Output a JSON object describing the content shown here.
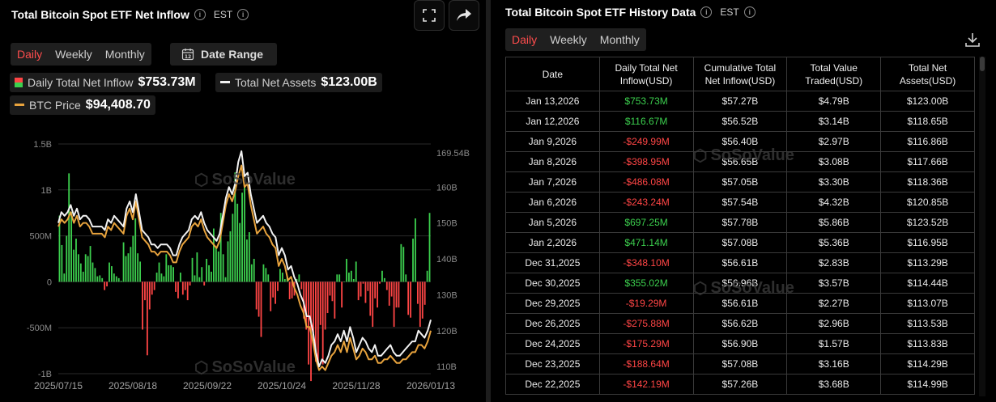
{
  "left": {
    "title": "Total Bitcoin Spot ETF Net Inflow",
    "timezone": "EST",
    "tabs": [
      "Daily",
      "Weekly",
      "Monthly"
    ],
    "active_tab": "Daily",
    "date_range_label": "Date Range",
    "legend": {
      "inflow_label": "Daily Total Net Inflow",
      "inflow_value": "$753.73M",
      "assets_label": "Total Net Assets",
      "assets_value": "$123.00B",
      "btc_label": "BTC Price",
      "btc_value": "$94,408.70"
    },
    "watermark": "SoSoValue"
  },
  "right": {
    "title": "Total Bitcoin Spot ETF History Data",
    "timezone": "EST",
    "tabs": [
      "Daily",
      "Weekly",
      "Monthly"
    ],
    "active_tab": "Daily",
    "columns": [
      "Date",
      "Daily Total Net Inflow(USD)",
      "Cumulative Total Net Inflow(USD)",
      "Total Value Traded(USD)",
      "Total Net Assets(USD)"
    ],
    "rows": [
      [
        "Jan 13,2026",
        "$753.73M",
        "$57.27B",
        "$4.79B",
        "$123.00B"
      ],
      [
        "Jan 12,2026",
        "$116.67M",
        "$56.52B",
        "$3.14B",
        "$118.65B"
      ],
      [
        "Jan 9,2026",
        "-$249.99M",
        "$56.40B",
        "$2.97B",
        "$116.86B"
      ],
      [
        "Jan 8,2026",
        "-$398.95M",
        "$56.65B",
        "$3.08B",
        "$117.66B"
      ],
      [
        "Jan 7,2026",
        "-$486.08M",
        "$57.05B",
        "$3.30B",
        "$118.36B"
      ],
      [
        "Jan 6,2026",
        "-$243.24M",
        "$57.54B",
        "$4.32B",
        "$120.85B"
      ],
      [
        "Jan 5,2026",
        "$697.25M",
        "$57.78B",
        "$5.86B",
        "$123.52B"
      ],
      [
        "Jan 2,2026",
        "$471.14M",
        "$57.08B",
        "$5.36B",
        "$116.95B"
      ],
      [
        "Dec 31,2025",
        "-$348.10M",
        "$56.61B",
        "$2.83B",
        "$113.29B"
      ],
      [
        "Dec 30,2025",
        "$355.02M",
        "$56.96B",
        "$3.57B",
        "$114.44B"
      ],
      [
        "Dec 29,2025",
        "-$19.29M",
        "$56.61B",
        "$2.27B",
        "$113.07B"
      ],
      [
        "Dec 26,2025",
        "-$275.88M",
        "$56.62B",
        "$2.96B",
        "$113.53B"
      ],
      [
        "Dec 24,2025",
        "-$175.29M",
        "$56.90B",
        "$1.57B",
        "$113.83B"
      ],
      [
        "Dec 23,2025",
        "-$188.64M",
        "$57.08B",
        "$3.16B",
        "$114.29B"
      ],
      [
        "Dec 22,2025",
        "-$142.19M",
        "$57.26B",
        "$3.68B",
        "$114.99B"
      ]
    ],
    "watermark": "SoSoValue"
  },
  "colors": {
    "positive": "#3ccf4e",
    "negative": "#ff4545",
    "active_tab": "#ff4d4d",
    "btc_line": "#e8a33d",
    "assets_line": "#f2f2f2"
  },
  "chart_data": {
    "type": "bar",
    "title": "Total Bitcoin Spot ETF Net Inflow",
    "x_tick_labels": [
      "2025/07/15",
      "2025/08/18",
      "2025/09/22",
      "2025/10/24",
      "2025/11/28",
      "2026/01/13"
    ],
    "y_left_ticks": [
      "1.5B",
      "1B",
      "500M",
      "0",
      "-500M",
      "-1B"
    ],
    "y_left_range": [
      -1000,
      1500
    ],
    "y_right_ticks": [
      "169.54B",
      "160B",
      "150B",
      "140B",
      "130B",
      "120B",
      "110B"
    ],
    "y_right_range": [
      108,
      172
    ],
    "series": [
      {
        "name": "Daily Total Net Inflow",
        "type": "bar",
        "unit": "M USD",
        "values": [
          720,
          400,
          90,
          500,
          1180,
          760,
          350,
          470,
          300,
          200,
          110,
          300,
          280,
          390,
          210,
          150,
          60,
          70,
          40,
          -90,
          -50,
          210,
          170,
          90,
          60,
          40,
          10,
          430,
          280,
          310,
          380,
          500,
          690,
          310,
          220,
          -520,
          -200,
          -800,
          -300,
          -140,
          -90,
          100,
          210,
          90,
          60,
          300,
          180,
          180,
          160,
          -110,
          -180,
          100,
          -140,
          -90,
          -200,
          -40,
          260,
          70,
          320,
          50,
          160,
          -40,
          250,
          180,
          110,
          580,
          370,
          330,
          750,
          300,
          50,
          440,
          550,
          740,
          1190,
          850,
          640,
          970,
          1050,
          460,
          540,
          190,
          250,
          -300,
          -380,
          -600,
          190,
          150,
          80,
          -320,
          -170,
          -240,
          -100,
          140,
          100,
          30,
          60,
          -190,
          -180,
          -150,
          30,
          80,
          -80,
          -400,
          -520,
          -900,
          -1080,
          -560,
          -870,
          -870,
          -470,
          -900,
          -520,
          -340,
          -150,
          -210,
          -400,
          80,
          80,
          -280,
          0,
          250,
          100,
          120,
          30,
          220,
          -200,
          -160,
          -20,
          -230,
          -100,
          -370,
          -490,
          -180,
          -280,
          -20,
          120,
          40,
          -90,
          -260,
          -160,
          -490,
          -280,
          -280,
          410,
          380,
          80,
          -360,
          -390,
          470,
          690,
          -240,
          -490,
          -400,
          -250,
          120,
          750
        ]
      },
      {
        "name": "Total Net Assets",
        "type": "line",
        "unit": "B USD",
        "values": [
          150,
          153,
          152,
          153,
          155,
          152,
          154,
          151,
          152,
          152,
          151,
          149,
          149,
          149,
          149,
          148,
          151,
          150,
          152,
          151,
          150,
          149,
          154,
          156,
          153,
          158,
          153,
          148,
          147,
          146,
          144,
          144,
          143,
          144,
          144,
          144,
          143,
          141,
          141,
          144,
          146,
          147,
          148,
          151,
          152,
          151,
          153,
          150,
          148,
          147,
          146,
          145,
          147,
          152,
          157,
          160,
          158,
          161,
          167,
          170,
          163,
          164,
          158,
          154,
          150,
          151,
          152,
          150,
          149,
          147,
          146,
          141,
          143,
          141,
          137,
          138,
          135,
          133,
          130,
          128,
          124,
          124,
          120,
          114,
          110,
          112,
          111,
          113,
          116,
          117,
          119,
          117,
          120,
          117,
          121,
          118,
          114,
          116,
          118,
          117,
          115,
          114,
          116,
          113,
          113,
          114,
          115,
          116,
          114,
          113,
          113,
          114,
          115,
          116,
          117,
          117,
          120,
          119,
          118,
          120,
          123
        ]
      },
      {
        "name": "BTC Price",
        "type": "line",
        "unit": "scaled to right axis",
        "values": [
          149,
          151,
          150,
          151,
          153,
          150,
          152,
          149,
          150,
          150,
          149,
          147,
          147,
          147,
          147,
          146,
          149,
          148,
          150,
          149,
          148,
          147,
          152,
          154,
          151,
          156,
          151,
          146,
          145,
          144,
          142,
          142,
          141,
          142,
          142,
          142,
          141,
          139,
          139,
          142,
          144,
          145,
          146,
          149,
          150,
          149,
          151,
          148,
          146,
          145,
          144,
          143,
          145,
          150,
          155,
          158,
          156,
          159,
          163,
          166,
          160,
          161,
          155,
          151,
          147,
          148,
          149,
          147,
          146,
          144,
          143,
          138,
          140,
          138,
          134,
          135,
          132,
          130,
          127,
          125,
          121,
          121,
          117,
          112,
          109,
          110,
          109,
          111,
          113,
          114,
          116,
          114,
          117,
          114,
          118,
          115,
          112,
          113,
          115,
          114,
          112,
          112,
          113,
          111,
          111,
          112,
          112,
          113,
          112,
          111,
          111,
          112,
          112,
          113,
          114,
          114,
          116,
          116,
          115,
          117,
          120
        ]
      }
    ]
  }
}
